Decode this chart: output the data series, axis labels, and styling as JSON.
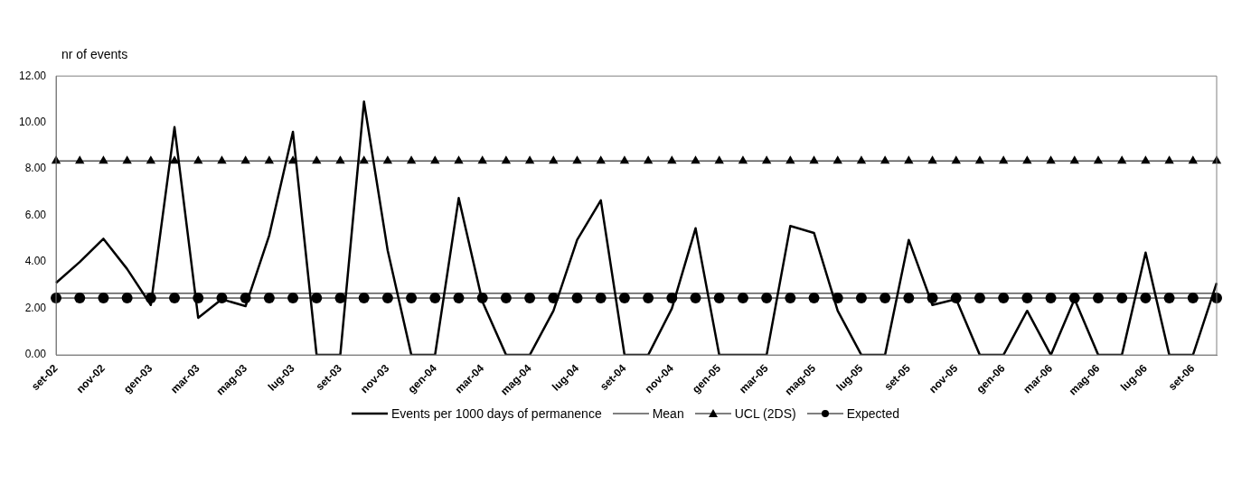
{
  "chart_data": {
    "type": "line",
    "ylabel": "nr of events",
    "categories": [
      "set-02",
      null,
      "nov-02",
      null,
      "gen-03",
      null,
      "mar-03",
      null,
      "mag-03",
      null,
      "lug-03",
      null,
      "set-03",
      null,
      "nov-03",
      null,
      "gen-04",
      null,
      "mar-04",
      null,
      "mag-04",
      null,
      "lug-04",
      null,
      "set-04",
      null,
      "nov-04",
      null,
      "gen-05",
      null,
      "mar-05",
      null,
      "mag-05",
      null,
      "lug-05",
      null,
      "set-05",
      null,
      "nov-05",
      null,
      "gen-06",
      null,
      "mar-06",
      null,
      "mag-06",
      null,
      "lug-06",
      null,
      "set-06",
      null
    ],
    "series": [
      {
        "name": "Events per 1000 days of permanence",
        "color": "#000000",
        "marker": "none",
        "values": [
          3.1,
          4.0,
          5.0,
          3.7,
          2.15,
          9.8,
          1.6,
          2.4,
          2.1,
          5.15,
          9.6,
          0,
          0,
          10.9,
          4.5,
          0,
          0,
          6.75,
          2.3,
          0,
          0,
          1.9,
          4.95,
          6.65,
          0,
          0,
          2.0,
          5.45,
          0,
          0,
          0,
          5.55,
          5.25,
          1.9,
          0,
          0,
          4.95,
          2.15,
          2.4,
          0,
          0,
          1.9,
          0,
          2.4,
          0,
          0,
          4.4,
          0,
          0,
          3.1
        ]
      },
      {
        "name": "Mean",
        "color": "#000000",
        "marker": "none",
        "values": [
          2.65,
          2.65,
          2.65,
          2.65,
          2.65,
          2.65,
          2.65,
          2.65,
          2.65,
          2.65,
          2.65,
          2.65,
          2.65,
          2.65,
          2.65,
          2.65,
          2.65,
          2.65,
          2.65,
          2.65,
          2.65,
          2.65,
          2.65,
          2.65,
          2.65,
          2.65,
          2.65,
          2.65,
          2.65,
          2.65,
          2.65,
          2.65,
          2.65,
          2.65,
          2.65,
          2.65,
          2.65,
          2.65,
          2.65,
          2.65,
          2.65,
          2.65,
          2.65,
          2.65,
          2.65,
          2.65,
          2.65,
          2.65,
          2.65,
          2.65
        ]
      },
      {
        "name": "UCL (2DS)",
        "color": "#000000",
        "marker": "triangle",
        "values": [
          8.35,
          8.35,
          8.35,
          8.35,
          8.35,
          8.35,
          8.35,
          8.35,
          8.35,
          8.35,
          8.35,
          8.35,
          8.35,
          8.35,
          8.35,
          8.35,
          8.35,
          8.35,
          8.35,
          8.35,
          8.35,
          8.35,
          8.35,
          8.35,
          8.35,
          8.35,
          8.35,
          8.35,
          8.35,
          8.35,
          8.35,
          8.35,
          8.35,
          8.35,
          8.35,
          8.35,
          8.35,
          8.35,
          8.35,
          8.35,
          8.35,
          8.35,
          8.35,
          8.35,
          8.35,
          8.35,
          8.35,
          8.35,
          8.35,
          8.35
        ]
      },
      {
        "name": "Expected",
        "color": "#000000",
        "marker": "circle",
        "values": [
          2.45,
          2.45,
          2.45,
          2.45,
          2.45,
          2.45,
          2.45,
          2.45,
          2.45,
          2.45,
          2.45,
          2.45,
          2.45,
          2.45,
          2.45,
          2.45,
          2.45,
          2.45,
          2.45,
          2.45,
          2.45,
          2.45,
          2.45,
          2.45,
          2.45,
          2.45,
          2.45,
          2.45,
          2.45,
          2.45,
          2.45,
          2.45,
          2.45,
          2.45,
          2.45,
          2.45,
          2.45,
          2.45,
          2.45,
          2.45,
          2.45,
          2.45,
          2.45,
          2.45,
          2.45,
          2.45,
          2.45,
          2.45,
          2.45,
          2.45
        ]
      }
    ],
    "ylim": [
      0,
      12
    ],
    "yticks": [
      {
        "value": 0,
        "label": "0.00"
      },
      {
        "value": 2,
        "label": "2.00"
      },
      {
        "value": 4,
        "label": "4.00"
      },
      {
        "value": 6,
        "label": "6.00"
      },
      {
        "value": 8,
        "label": "8.00"
      },
      {
        "value": 10,
        "label": "10.00"
      },
      {
        "value": 12,
        "label": "12.00"
      }
    ],
    "grid": false,
    "legend": "bottom",
    "line_style": "solid"
  }
}
